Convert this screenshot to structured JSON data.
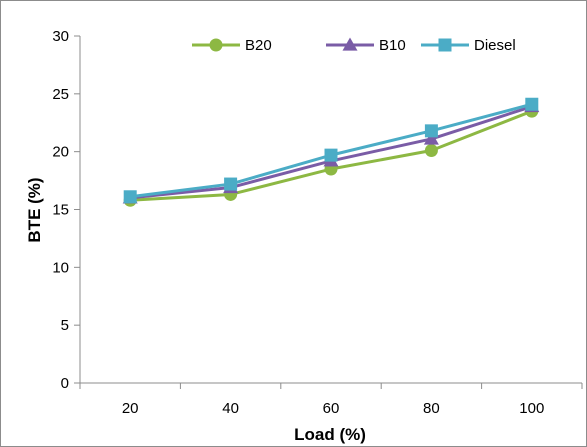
{
  "chart_data": {
    "type": "line",
    "x": [
      20,
      40,
      60,
      80,
      100
    ],
    "series": [
      {
        "name": "B20",
        "values": [
          15.8,
          16.3,
          18.5,
          20.1,
          23.5
        ],
        "color": "#8db843",
        "marker": "circle"
      },
      {
        "name": "B10",
        "values": [
          16.0,
          16.9,
          19.2,
          21.1,
          23.9
        ],
        "color": "#7a5ca6",
        "marker": "triangle"
      },
      {
        "name": "Diesel",
        "values": [
          16.1,
          17.2,
          19.7,
          21.8,
          24.1
        ],
        "color": "#4bacc6",
        "marker": "square"
      }
    ],
    "xlabel": "Load (%)",
    "ylabel": "BTE (%)",
    "ylim": [
      0,
      30
    ],
    "yticks": [
      0,
      5,
      10,
      15,
      20,
      25,
      30
    ],
    "xtick_labels": [
      "20",
      "40",
      "60",
      "80",
      "100"
    ],
    "ytick_labels": [
      "0",
      "5",
      "10",
      "15",
      "20",
      "25",
      "30"
    ],
    "grid": false,
    "legend_position": "top-right"
  }
}
